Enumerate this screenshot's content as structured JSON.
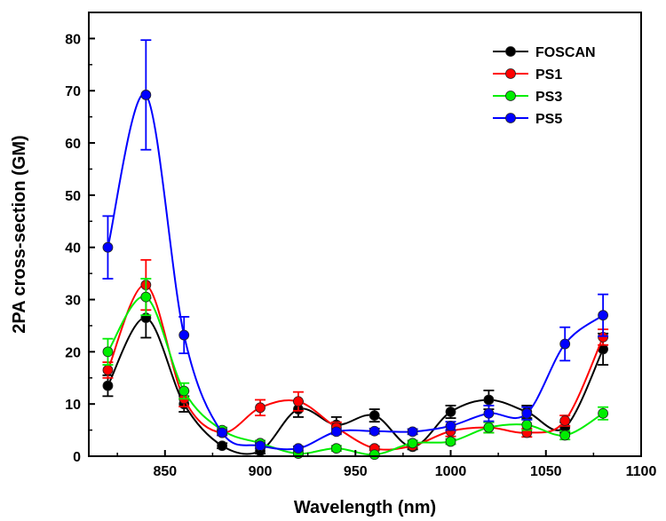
{
  "chart_data": {
    "type": "line",
    "title": "",
    "xlabel": "Wavelength (nm)",
    "ylabel": "2PA cross-section (GM)",
    "xlim": [
      810,
      1100
    ],
    "ylim": [
      0,
      85
    ],
    "xticks": [
      850,
      900,
      950,
      1000,
      1050,
      1100
    ],
    "yticks": [
      0,
      10,
      20,
      30,
      40,
      50,
      60,
      70,
      80
    ],
    "grid": false,
    "legend_position": "top-right",
    "x": [
      820,
      840,
      860,
      880,
      900,
      920,
      940,
      960,
      980,
      1000,
      1020,
      1040,
      1060,
      1080
    ],
    "series": [
      {
        "name": "FOSCAN",
        "color": "#000000",
        "values": [
          13.5,
          26.5,
          10,
          2,
          1,
          9,
          6,
          7.8,
          1.8,
          8.5,
          10.8,
          8.5,
          5.5,
          20.5
        ],
        "errors": [
          2,
          3.8,
          1.5,
          0.5,
          0.5,
          1.5,
          1.5,
          1.2,
          0.5,
          1.2,
          1.8,
          1.2,
          1,
          3
        ]
      },
      {
        "name": "PS1",
        "color": "#ff0000",
        "values": [
          16.5,
          32.8,
          11,
          4.5,
          9.3,
          10.5,
          5.5,
          1.5,
          2,
          4.8,
          5.5,
          4.5,
          6.8,
          22.8
        ],
        "errors": [
          1.5,
          4.8,
          1.5,
          0.5,
          1.5,
          1.8,
          1,
          0.4,
          0.4,
          1,
          1,
          0.8,
          1,
          1.5
        ]
      },
      {
        "name": "PS3",
        "color": "#00ee00",
        "values": [
          20,
          30.5,
          12.5,
          5,
          2.5,
          0.5,
          1.5,
          0.3,
          2.5,
          2.8,
          5.5,
          6,
          4,
          8.2
        ],
        "errors": [
          2.5,
          3.5,
          1.5,
          0.5,
          0.5,
          0.3,
          0.5,
          0.2,
          0.5,
          0.5,
          1,
          1,
          0.8,
          1.2
        ]
      },
      {
        "name": "PS5",
        "color": "#0000ff",
        "values": [
          40,
          69.2,
          23.2,
          4.5,
          2,
          1.5,
          4.7,
          4.8,
          4.7,
          5.8,
          8.2,
          8.2,
          21.5,
          27
        ],
        "errors": [
          6,
          10.5,
          3.5,
          0.5,
          0.5,
          0.4,
          0.5,
          0.5,
          0.5,
          0.8,
          1.5,
          1.2,
          3.2,
          4
        ]
      }
    ]
  }
}
